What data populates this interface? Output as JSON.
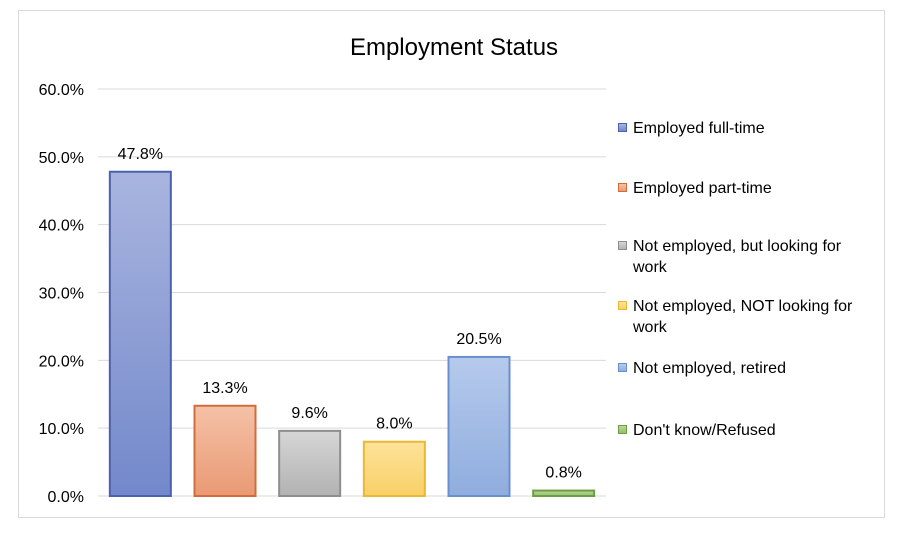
{
  "chart_data": {
    "type": "bar",
    "title": "Employment Status",
    "categories": [
      "Employed full-time",
      "Employed part-time",
      "Not employed, but looking for work",
      "Not employed, NOT looking for work",
      "Not employed, retired",
      "Don't know/Refused"
    ],
    "values": [
      47.8,
      13.3,
      9.6,
      8.0,
      20.5,
      0.8
    ],
    "data_labels": [
      "47.8%",
      "13.3%",
      "9.6%",
      "8.0%",
      "20.5%",
      "0.8%"
    ],
    "ylim": [
      0,
      60
    ],
    "yticks": [
      0,
      10,
      20,
      30,
      40,
      50,
      60
    ],
    "ytick_labels": [
      "0.0%",
      "10.0%",
      "20.0%",
      "30.0%",
      "40.0%",
      "50.0%",
      "60.0%"
    ],
    "grid": true,
    "legend_position": "right",
    "colors": [
      {
        "fill_top": "#a9b5df",
        "fill_bottom": "#7388cb",
        "stroke": "#4a62ad"
      },
      {
        "fill_top": "#f5c1a7",
        "fill_bottom": "#e99a74",
        "stroke": "#d26c3d"
      },
      {
        "fill_top": "#d6d6d6",
        "fill_bottom": "#b2b2b2",
        "stroke": "#8e8e8e"
      },
      {
        "fill_top": "#fde39a",
        "fill_bottom": "#f8d067",
        "stroke": "#e9b935"
      },
      {
        "fill_top": "#b6caec",
        "fill_bottom": "#8fadde",
        "stroke": "#6a8fcf"
      },
      {
        "fill_top": "#b9d89c",
        "fill_bottom": "#94c06c",
        "stroke": "#6d9e44"
      }
    ]
  }
}
